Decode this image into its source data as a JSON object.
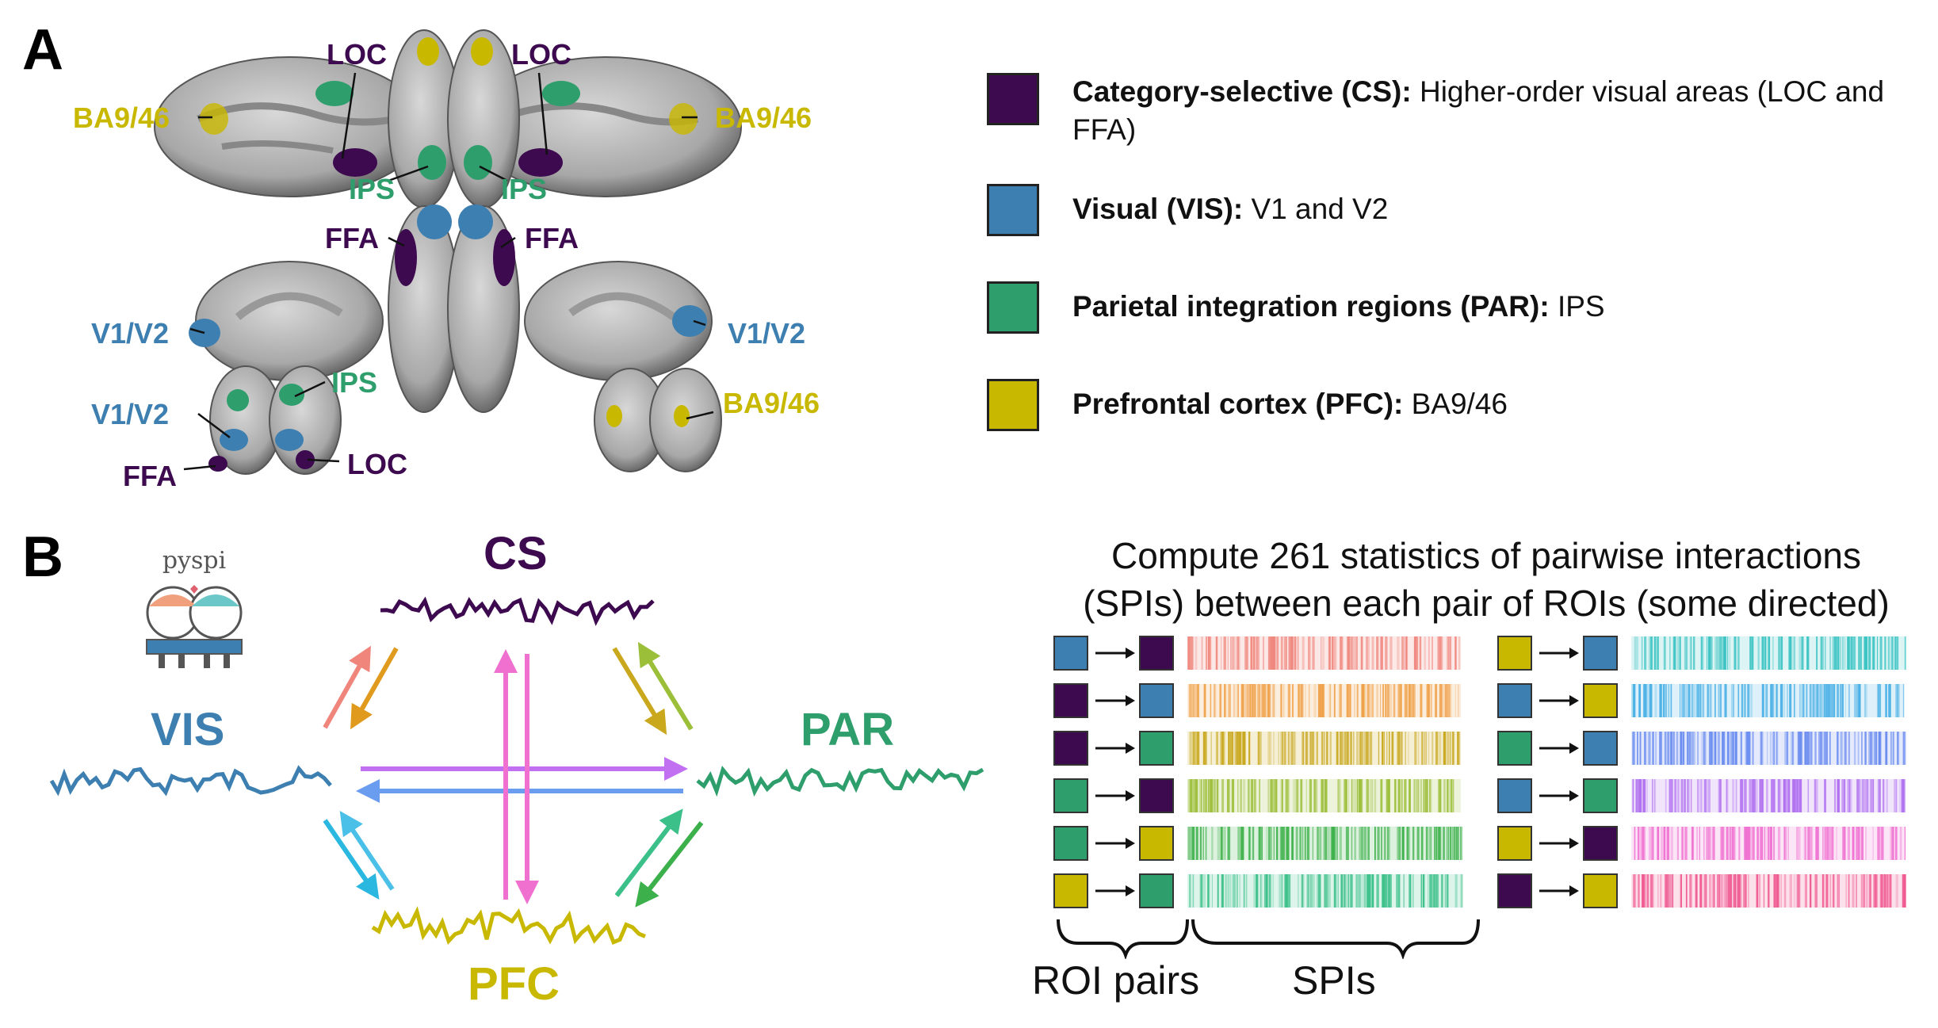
{
  "panelA": {
    "letter": "A",
    "labels": {
      "loc_left": "LOC",
      "loc_right": "LOC",
      "ba_left": "BA9/46",
      "ba_right": "BA9/46",
      "ips_left": "IPS",
      "ips_right": "IPS",
      "ffa_left": "FFA",
      "ffa_right": "FFA",
      "v1v2_left": "V1/V2",
      "v1v2_right": "V1/V2",
      "v1v2_post": "V1/V2",
      "ips_post": "IPS",
      "loc_post": "LOC",
      "ffa_post": "FFA",
      "ba_front": "BA9/46"
    },
    "legend": [
      {
        "bold": "Category-selective (CS):",
        "rest": " Higher-order visual areas (LOC and FFA)",
        "color": "#3d0a4f"
      },
      {
        "bold": "Visual (VIS):",
        "rest": " V1 and V2",
        "color": "#3d7fb0"
      },
      {
        "bold": "Parietal integration regions (PAR):",
        "rest": " IPS",
        "color": "#2e9e6c"
      },
      {
        "bold": "Prefrontal cortex (PFC):",
        "rest": " BA9/46",
        "color": "#c9b800"
      }
    ]
  },
  "panelB": {
    "letter": "B",
    "logo_text": "pyspi",
    "regions": {
      "cs": "CS",
      "vis": "VIS",
      "par": "PAR",
      "pfc": "PFC"
    },
    "title_line1": "Compute 261 statistics of pairwise interactions",
    "title_line2": "(SPIs) between each pair of ROIs (some directed)",
    "roi_pairs_label": "ROI pairs",
    "spis_label": "SPIs",
    "pairs_left": [
      {
        "from": "#3d7fb0",
        "to": "#3d0a4f",
        "bar": "#f0857c"
      },
      {
        "from": "#3d0a4f",
        "to": "#3d7fb0",
        "bar": "#f0a24a"
      },
      {
        "from": "#3d0a4f",
        "to": "#2e9e6c",
        "bar": "#c9a81e"
      },
      {
        "from": "#2e9e6c",
        "to": "#3d0a4f",
        "bar": "#9cbf3a"
      },
      {
        "from": "#2e9e6c",
        "to": "#c9b800",
        "bar": "#3cb04a"
      },
      {
        "from": "#c9b800",
        "to": "#2e9e6c",
        "bar": "#3cc08a"
      }
    ],
    "pairs_right": [
      {
        "from": "#c9b800",
        "to": "#3d7fb0",
        "bar": "#3cc4c4"
      },
      {
        "from": "#3d7fb0",
        "to": "#c9b800",
        "bar": "#4ab0e6"
      },
      {
        "from": "#2e9e6c",
        "to": "#3d7fb0",
        "bar": "#6a8cf0"
      },
      {
        "from": "#3d7fb0",
        "to": "#2e9e6c",
        "bar": "#b070f0"
      },
      {
        "from": "#c9b800",
        "to": "#3d0a4f",
        "bar": "#f070d0"
      },
      {
        "from": "#3d0a4f",
        "to": "#c9b800",
        "bar": "#f05890"
      }
    ],
    "colors": {
      "cs": "#3d0a4f",
      "vis": "#3d7fb0",
      "par": "#2e9e6c",
      "pfc": "#c9b800"
    }
  }
}
